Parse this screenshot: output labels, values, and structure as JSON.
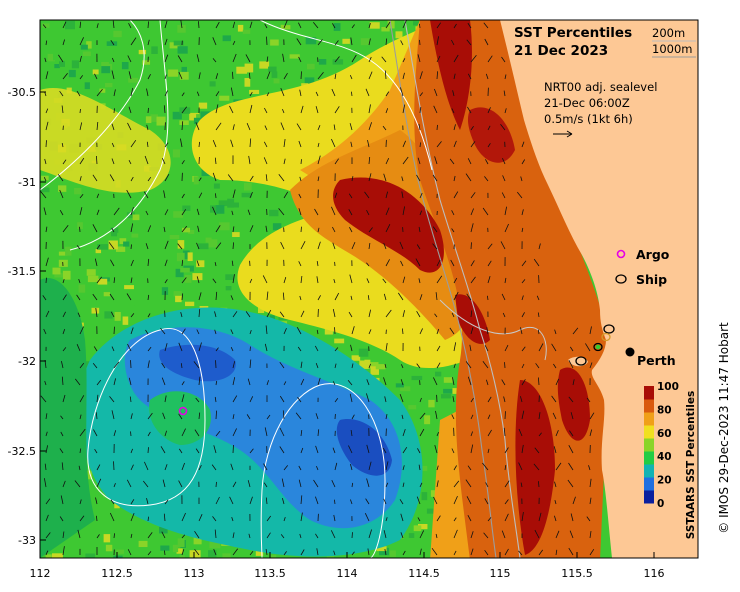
{
  "map": {
    "title_line1": "SST Percentiles",
    "title_line2": "21 Dec 2023",
    "contour_legend": {
      "shallow": "200m",
      "deep": "1000m"
    },
    "current_info": {
      "line1": "NRT00 adj. sealevel",
      "line2": "21-Dec 06:00Z",
      "line3": "0.5m/s (1kt 6h)"
    },
    "markers": {
      "argo_label": "Argo",
      "ship_label": "Ship",
      "city_label": "Perth",
      "argo_color": "#e600e6",
      "ship_color": "#000000",
      "city_color": "#000000"
    },
    "x_ticks": [
      "112",
      "112.5",
      "113",
      "113.5",
      "114",
      "114.5",
      "115",
      "115.5",
      "116"
    ],
    "y_ticks": [
      "-30.5",
      "-31",
      "-31.5",
      "-32",
      "-32.5",
      "-33"
    ],
    "colorbar": {
      "label": "SSTAARS SST Percentiles",
      "ticks": [
        "100",
        "80",
        "60",
        "40",
        "20",
        "0"
      ],
      "colors": [
        "#0a1f9e",
        "#1e6fe0",
        "#12b3b3",
        "#22cc44",
        "#8ad428",
        "#f0e020",
        "#f0a018",
        "#d95a0e",
        "#a80d06"
      ]
    },
    "land_color": "#fdc895",
    "credit": "© IMOS 29-Dec-2023 11:47 Hobart"
  }
}
